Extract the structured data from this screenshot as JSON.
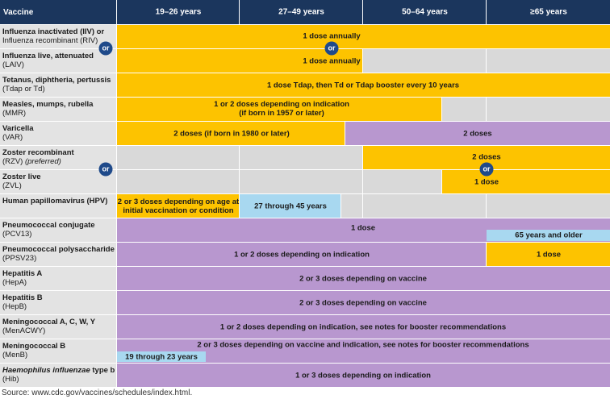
{
  "header": {
    "vaccine": "Vaccine",
    "ages": [
      "19–26 years",
      "27–49 years",
      "50–64 years",
      "≥65 years"
    ]
  },
  "or": "or",
  "rows": [
    {
      "name": [
        "Influenza inactivated (IIV) or",
        "Influenza recombinant (RIV)"
      ],
      "doses": [
        "1 dose annually"
      ]
    },
    {
      "name": [
        "Influenza live, attenuated",
        "(LAIV)"
      ],
      "doses": [
        "1 dose annually"
      ]
    },
    {
      "name": [
        "Tetanus, diphtheria, pertussis",
        "(Tdap or Td)"
      ],
      "doses": [
        "1 dose Tdap, then Td or Tdap booster every 10 years"
      ]
    },
    {
      "name": [
        "Measles, mumps, rubella",
        "(MMR)"
      ],
      "doses": [
        [
          "1 or 2 doses depending on indication",
          "(if born in 1957 or later)"
        ]
      ]
    },
    {
      "name": [
        "Varicella",
        "(VAR)"
      ],
      "doses": [
        "2 doses (if born in 1980 or later)",
        "2 doses"
      ]
    },
    {
      "name": [
        "Zoster recombinant",
        "(RZV)",
        "(preferred)"
      ],
      "doses": [
        "2 doses"
      ]
    },
    {
      "name": [
        "Zoster live",
        "(ZVL)"
      ],
      "doses": [
        "1 dose"
      ]
    },
    {
      "name": [
        "Human papillomavirus (HPV)"
      ],
      "doses": [
        [
          "2 or 3 doses depending on age at",
          "initial vaccination or condition"
        ],
        "27 through 45 years"
      ]
    },
    {
      "name": [
        "Pneumococcal conjugate",
        "(PCV13)"
      ],
      "doses": [
        "1 dose",
        "65 years and older"
      ]
    },
    {
      "name": [
        "Pneumococcal polysaccharide",
        "(PPSV23)"
      ],
      "doses": [
        "1 or 2 doses depending on indication",
        "1 dose"
      ]
    },
    {
      "name": [
        "Hepatitis A",
        "(HepA)"
      ],
      "doses": [
        "2 or 3 doses depending on vaccine"
      ]
    },
    {
      "name": [
        "Hepatitis B",
        "(HepB)"
      ],
      "doses": [
        "2 or 3 doses depending on vaccine"
      ]
    },
    {
      "name": [
        "Meningococcal A, C, W, Y",
        "(MenACWY)"
      ],
      "doses": [
        "1 or 2 doses depending on indication, see notes for booster recommendations"
      ]
    },
    {
      "name": [
        "Meningococcal B",
        "(MenB)"
      ],
      "doses": [
        "2 or 3 doses depending on vaccine and indication, see notes for booster recommendations",
        "19 through 23 years"
      ]
    },
    {
      "name": [
        "Haemophilus influenzae",
        " type b",
        "(Hib)"
      ],
      "doses": [
        "1 or 3 doses depending on indication"
      ]
    }
  ],
  "source": "Source: www.cdc.gov/vaccines/schedules/index.html."
}
